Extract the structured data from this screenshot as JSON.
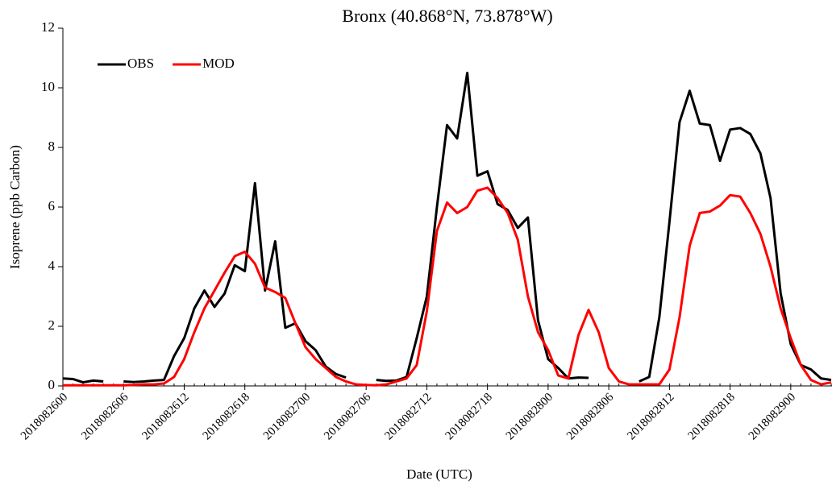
{
  "chart_data": {
    "type": "line",
    "title": "Bronx (40.868°N, 73.878°W)",
    "xlabel": "Date (UTC)",
    "ylabel": "Isoprene (ppb Carbon)",
    "categories": [
      "2018082600",
      null,
      null,
      null,
      null,
      null,
      "2018082606",
      null,
      null,
      null,
      null,
      null,
      "2018082612",
      null,
      null,
      null,
      null,
      null,
      "2018082618",
      null,
      null,
      null,
      null,
      null,
      "2018082700",
      null,
      null,
      null,
      null,
      null,
      "2018082706",
      null,
      null,
      null,
      null,
      null,
      "2018082712",
      null,
      null,
      null,
      null,
      null,
      "2018082718",
      null,
      null,
      null,
      null,
      null,
      "2018082800",
      null,
      null,
      null,
      null,
      null,
      "2018082806",
      null,
      null,
      null,
      null,
      null,
      "2018082812",
      null,
      null,
      null,
      null,
      null,
      "2018082818",
      null,
      null,
      null,
      null,
      null,
      "2018082900",
      null,
      null,
      null,
      null
    ],
    "series": [
      {
        "name": "OBS",
        "color": "#000000",
        "values": [
          0.25,
          0.23,
          0.12,
          0.18,
          0.15,
          null,
          0.15,
          0.13,
          0.15,
          0.18,
          0.2,
          1.0,
          1.6,
          2.6,
          3.2,
          2.65,
          3.1,
          4.05,
          3.85,
          6.8,
          3.2,
          4.85,
          1.95,
          2.1,
          1.5,
          1.2,
          0.65,
          0.4,
          0.28,
          null,
          null,
          0.2,
          0.17,
          0.18,
          0.3,
          1.6,
          3.0,
          6.0,
          8.75,
          8.3,
          10.5,
          7.05,
          7.2,
          6.1,
          5.9,
          5.3,
          5.65,
          2.2,
          0.9,
          0.6,
          0.25,
          0.28,
          0.27,
          null,
          null,
          null,
          null,
          0.15,
          0.3,
          2.3,
          5.5,
          8.85,
          9.9,
          8.8,
          8.75,
          7.55,
          8.6,
          8.65,
          8.45,
          7.8,
          6.3,
          3.1,
          1.4,
          0.7,
          0.55,
          0.25,
          0.2
        ]
      },
      {
        "name": "MOD",
        "color": "#ff0000",
        "values": [
          0.02,
          0.02,
          0.02,
          0.02,
          0.02,
          0.02,
          0.02,
          0.03,
          0.05,
          0.05,
          0.08,
          0.3,
          0.9,
          1.8,
          2.6,
          3.2,
          3.8,
          4.35,
          4.5,
          4.1,
          3.3,
          3.15,
          2.95,
          2.1,
          1.3,
          0.9,
          0.6,
          0.3,
          0.15,
          0.05,
          0.03,
          0.02,
          0.05,
          0.15,
          0.25,
          0.7,
          2.5,
          5.2,
          6.15,
          5.8,
          6.0,
          6.55,
          6.65,
          6.3,
          5.8,
          4.9,
          3.0,
          1.8,
          1.2,
          0.35,
          0.25,
          1.7,
          2.55,
          1.8,
          0.6,
          0.15,
          0.05,
          0.05,
          0.05,
          0.05,
          0.55,
          2.3,
          4.7,
          5.8,
          5.85,
          6.05,
          6.4,
          6.35,
          5.8,
          5.1,
          4.0,
          2.6,
          1.6,
          0.7,
          0.2,
          0.05,
          0.12
        ]
      }
    ],
    "ylim": [
      0,
      12
    ],
    "yticks": [
      0,
      2,
      4,
      6,
      8,
      10,
      12
    ],
    "legend": "upper left"
  }
}
